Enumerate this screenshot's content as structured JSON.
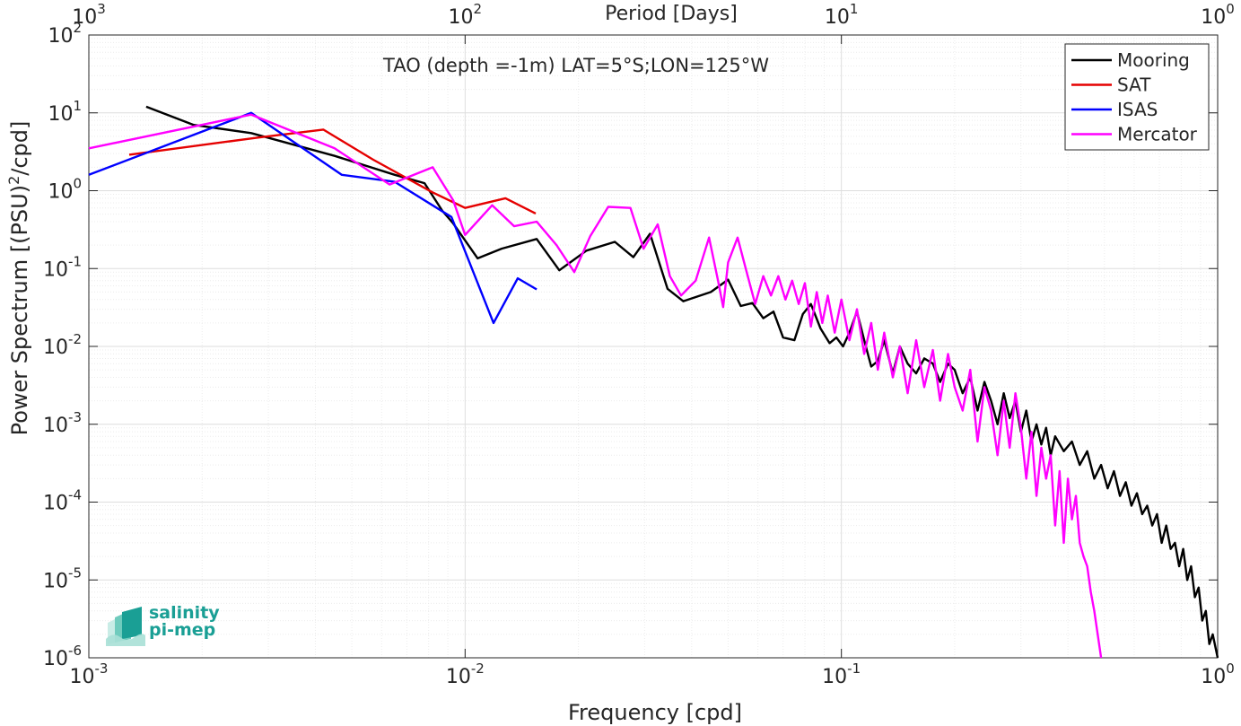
{
  "chart_data": {
    "type": "line",
    "title": "TAO (depth =-1m) LAT=5°S;LON=125°W",
    "xlabel": "Frequency [cpd]",
    "ylabel": "Power Spectrum [(PSU)",
    "ylabel_sup": "2",
    "ylabel_tail": "/cpd]",
    "top_xlabel": "Period [Days]",
    "xscale": "log",
    "yscale": "log",
    "xlim": [
      0.001,
      1
    ],
    "ylim": [
      1e-06,
      100
    ],
    "grid": true,
    "legend_position": "top-right",
    "x_ticks": [
      {
        "value": 0.001,
        "base": "10",
        "exp": "-3"
      },
      {
        "value": 0.01,
        "base": "10",
        "exp": "-2"
      },
      {
        "value": 0.1,
        "base": "10",
        "exp": "-1"
      },
      {
        "value": 1,
        "base": "10",
        "exp": "0"
      }
    ],
    "top_ticks": [
      {
        "value": 0.001,
        "base": "10",
        "exp": "3"
      },
      {
        "value": 0.01,
        "base": "10",
        "exp": "2"
      },
      {
        "value": 0.1,
        "base": "10",
        "exp": "1"
      },
      {
        "value": 1,
        "base": "10",
        "exp": "0"
      }
    ],
    "y_ticks": [
      {
        "value": 100,
        "base": "10",
        "exp": "2"
      },
      {
        "value": 10,
        "base": "10",
        "exp": "1"
      },
      {
        "value": 1,
        "base": "10",
        "exp": "0"
      },
      {
        "value": 0.1,
        "base": "10",
        "exp": "-1"
      },
      {
        "value": 0.01,
        "base": "10",
        "exp": "-2"
      },
      {
        "value": 0.001,
        "base": "10",
        "exp": "-3"
      },
      {
        "value": 0.0001,
        "base": "10",
        "exp": "-4"
      },
      {
        "value": 1e-05,
        "base": "10",
        "exp": "-5"
      },
      {
        "value": 1e-06,
        "base": "10",
        "exp": "-6"
      }
    ],
    "series": [
      {
        "name": "Mooring",
        "color": "#000000",
        "points": [
          [
            0.00142,
            12
          ],
          [
            0.0019,
            7
          ],
          [
            0.0027,
            5.5
          ],
          [
            0.0045,
            2.8
          ],
          [
            0.0065,
            1.6
          ],
          [
            0.0078,
            1.25
          ],
          [
            0.0087,
            0.55
          ],
          [
            0.0093,
            0.38
          ],
          [
            0.0108,
            0.135
          ],
          [
            0.0125,
            0.18
          ],
          [
            0.0155,
            0.24
          ],
          [
            0.0178,
            0.095
          ],
          [
            0.021,
            0.17
          ],
          [
            0.025,
            0.22
          ],
          [
            0.028,
            0.14
          ],
          [
            0.031,
            0.28
          ],
          [
            0.0345,
            0.055
          ],
          [
            0.038,
            0.038
          ],
          [
            0.045,
            0.05
          ],
          [
            0.05,
            0.072
          ],
          [
            0.054,
            0.033
          ],
          [
            0.058,
            0.036
          ],
          [
            0.062,
            0.023
          ],
          [
            0.066,
            0.028
          ],
          [
            0.07,
            0.013
          ],
          [
            0.075,
            0.012
          ],
          [
            0.079,
            0.026
          ],
          [
            0.083,
            0.035
          ],
          [
            0.088,
            0.017
          ],
          [
            0.093,
            0.011
          ],
          [
            0.097,
            0.013
          ],
          [
            0.101,
            0.01
          ],
          [
            0.105,
            0.015
          ],
          [
            0.11,
            0.028
          ],
          [
            0.115,
            0.012
          ],
          [
            0.12,
            0.0055
          ],
          [
            0.125,
            0.0065
          ],
          [
            0.13,
            0.012
          ],
          [
            0.137,
            0.0045
          ],
          [
            0.143,
            0.01
          ],
          [
            0.15,
            0.006
          ],
          [
            0.158,
            0.0045
          ],
          [
            0.166,
            0.007
          ],
          [
            0.175,
            0.006
          ],
          [
            0.183,
            0.0035
          ],
          [
            0.192,
            0.006
          ],
          [
            0.2,
            0.005
          ],
          [
            0.21,
            0.0025
          ],
          [
            0.22,
            0.004
          ],
          [
            0.23,
            0.0015
          ],
          [
            0.24,
            0.0035
          ],
          [
            0.25,
            0.002
          ],
          [
            0.26,
            0.001
          ],
          [
            0.27,
            0.0025
          ],
          [
            0.28,
            0.0012
          ],
          [
            0.29,
            0.002
          ],
          [
            0.3,
            0.0008
          ],
          [
            0.31,
            0.0015
          ],
          [
            0.32,
            0.0006
          ],
          [
            0.33,
            0.001
          ],
          [
            0.34,
            0.00055
          ],
          [
            0.35,
            0.0009
          ],
          [
            0.36,
            0.0004
          ],
          [
            0.37,
            0.0007
          ],
          [
            0.39,
            0.00045
          ],
          [
            0.41,
            0.0006
          ],
          [
            0.43,
            0.0003
          ],
          [
            0.45,
            0.00045
          ],
          [
            0.47,
            0.0002
          ],
          [
            0.49,
            0.0003
          ],
          [
            0.51,
            0.00015
          ],
          [
            0.53,
            0.00025
          ],
          [
            0.55,
            0.00012
          ],
          [
            0.57,
            0.00018
          ],
          [
            0.59,
            9e-05
          ],
          [
            0.61,
            0.00013
          ],
          [
            0.63,
            7e-05
          ],
          [
            0.65,
            9e-05
          ],
          [
            0.67,
            5e-05
          ],
          [
            0.69,
            7e-05
          ],
          [
            0.71,
            3e-05
          ],
          [
            0.73,
            5e-05
          ],
          [
            0.75,
            2.5e-05
          ],
          [
            0.77,
            3e-05
          ],
          [
            0.79,
            1.5e-05
          ],
          [
            0.81,
            2.5e-05
          ],
          [
            0.83,
            1e-05
          ],
          [
            0.85,
            1.5e-05
          ],
          [
            0.87,
            6e-06
          ],
          [
            0.89,
            8e-06
          ],
          [
            0.91,
            3e-06
          ],
          [
            0.93,
            4e-06
          ],
          [
            0.95,
            1.5e-06
          ],
          [
            0.97,
            2e-06
          ],
          [
            1.0,
            1e-06
          ]
        ]
      },
      {
        "name": "SAT",
        "color": "#e50000",
        "points": [
          [
            0.00128,
            2.9
          ],
          [
            0.0028,
            4.8
          ],
          [
            0.0042,
            6.1
          ],
          [
            0.0057,
            2.5
          ],
          [
            0.0082,
            0.95
          ],
          [
            0.01,
            0.6
          ],
          [
            0.0128,
            0.8
          ],
          [
            0.0154,
            0.51
          ]
        ]
      },
      {
        "name": "ISAS",
        "color": "#0000ff",
        "points": [
          [
            0.001,
            1.6
          ],
          [
            0.0027,
            10
          ],
          [
            0.0047,
            1.6
          ],
          [
            0.0065,
            1.3
          ],
          [
            0.0092,
            0.46
          ],
          [
            0.0119,
            0.02
          ],
          [
            0.0138,
            0.075
          ],
          [
            0.0155,
            0.054
          ]
        ]
      },
      {
        "name": "Mercator",
        "color": "#ff00ff",
        "points": [
          [
            0.001,
            3.5
          ],
          [
            0.0027,
            9.5
          ],
          [
            0.0045,
            3.5
          ],
          [
            0.0063,
            1.2
          ],
          [
            0.0082,
            2.0
          ],
          [
            0.0093,
            0.75
          ],
          [
            0.01,
            0.27
          ],
          [
            0.0118,
            0.65
          ],
          [
            0.0135,
            0.35
          ],
          [
            0.0155,
            0.4
          ],
          [
            0.0175,
            0.2
          ],
          [
            0.0195,
            0.09
          ],
          [
            0.0215,
            0.26
          ],
          [
            0.024,
            0.62
          ],
          [
            0.0275,
            0.6
          ],
          [
            0.0298,
            0.18
          ],
          [
            0.0325,
            0.37
          ],
          [
            0.035,
            0.08
          ],
          [
            0.0375,
            0.045
          ],
          [
            0.041,
            0.07
          ],
          [
            0.0445,
            0.25
          ],
          [
            0.047,
            0.07
          ],
          [
            0.0485,
            0.032
          ],
          [
            0.05,
            0.12
          ],
          [
            0.053,
            0.25
          ],
          [
            0.056,
            0.09
          ],
          [
            0.059,
            0.035
          ],
          [
            0.062,
            0.08
          ],
          [
            0.065,
            0.045
          ],
          [
            0.068,
            0.08
          ],
          [
            0.071,
            0.04
          ],
          [
            0.074,
            0.07
          ],
          [
            0.077,
            0.035
          ],
          [
            0.08,
            0.065
          ],
          [
            0.083,
            0.018
          ],
          [
            0.086,
            0.05
          ],
          [
            0.089,
            0.02
          ],
          [
            0.092,
            0.045
          ],
          [
            0.096,
            0.015
          ],
          [
            0.1,
            0.04
          ],
          [
            0.105,
            0.012
          ],
          [
            0.11,
            0.03
          ],
          [
            0.115,
            0.008
          ],
          [
            0.12,
            0.02
          ],
          [
            0.125,
            0.005
          ],
          [
            0.13,
            0.015
          ],
          [
            0.137,
            0.004
          ],
          [
            0.143,
            0.01
          ],
          [
            0.15,
            0.0025
          ],
          [
            0.158,
            0.012
          ],
          [
            0.166,
            0.003
          ],
          [
            0.175,
            0.009
          ],
          [
            0.183,
            0.002
          ],
          [
            0.192,
            0.008
          ],
          [
            0.2,
            0.003
          ],
          [
            0.21,
            0.0015
          ],
          [
            0.22,
            0.005
          ],
          [
            0.23,
            0.0006
          ],
          [
            0.24,
            0.003
          ],
          [
            0.25,
            0.0015
          ],
          [
            0.26,
            0.0004
          ],
          [
            0.27,
            0.002
          ],
          [
            0.28,
            0.0005
          ],
          [
            0.29,
            0.0025
          ],
          [
            0.3,
            0.0009
          ],
          [
            0.31,
            0.0002
          ],
          [
            0.32,
            0.0008
          ],
          [
            0.33,
            0.00012
          ],
          [
            0.34,
            0.0005
          ],
          [
            0.35,
            0.0002
          ],
          [
            0.36,
            0.0004
          ],
          [
            0.37,
            5e-05
          ],
          [
            0.38,
            0.00025
          ],
          [
            0.39,
            3e-05
          ],
          [
            0.4,
            0.0002
          ],
          [
            0.41,
            6e-05
          ],
          [
            0.42,
            0.00012
          ],
          [
            0.43,
            3e-05
          ],
          [
            0.44,
            2e-05
          ],
          [
            0.45,
            1.5e-05
          ],
          [
            0.46,
            7e-06
          ],
          [
            0.47,
            4e-06
          ],
          [
            0.48,
            2e-06
          ],
          [
            0.49,
            1e-06
          ]
        ]
      }
    ]
  },
  "logo": {
    "line1": "salinity",
    "line2": "pi-mep",
    "color": "#1a9f95"
  }
}
